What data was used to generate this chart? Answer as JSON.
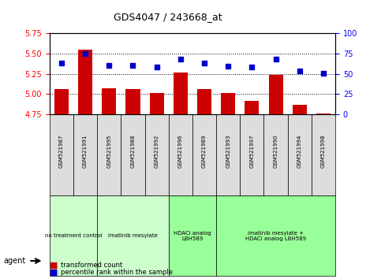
{
  "title": "GDS4047 / 243668_at",
  "samples": [
    "GSM521987",
    "GSM521991",
    "GSM521995",
    "GSM521988",
    "GSM521992",
    "GSM521996",
    "GSM521989",
    "GSM521993",
    "GSM521997",
    "GSM521990",
    "GSM521994",
    "GSM521998"
  ],
  "bar_values": [
    5.06,
    5.55,
    5.07,
    5.06,
    5.01,
    5.27,
    5.06,
    5.01,
    4.92,
    5.24,
    4.87,
    4.76
  ],
  "dot_values": [
    63,
    75,
    61,
    61,
    59,
    68,
    63,
    60,
    59,
    68,
    54,
    51
  ],
  "ymin": 4.75,
  "ymax": 5.75,
  "y2min": 0,
  "y2max": 100,
  "yticks": [
    4.75,
    5.0,
    5.25,
    5.5,
    5.75
  ],
  "y2ticks": [
    0,
    25,
    50,
    75,
    100
  ],
  "bar_color": "#cc0000",
  "dot_color": "#0000cc",
  "bar_bottom": 4.75,
  "groups": [
    {
      "label": "no treatment control",
      "start": 0,
      "end": 2,
      "color": "#ccffcc"
    },
    {
      "label": "imatinib mesylate",
      "start": 2,
      "end": 5,
      "color": "#ccffcc"
    },
    {
      "label": "HDACi analog\nLBH589",
      "start": 5,
      "end": 7,
      "color": "#99ff99"
    },
    {
      "label": "imatinib mesylate +\nHDACi analog LBH589",
      "start": 7,
      "end": 11,
      "color": "#99ff99"
    }
  ],
  "group_spans": [
    {
      "label": "no treatment control",
      "start": 0,
      "end": 1,
      "color": "#ccffcc"
    },
    {
      "label": "imatinib mesylate",
      "start": 2,
      "end": 4,
      "color": "#ccffcc"
    },
    {
      "label": "HDACi analog\nLBH589",
      "start": 5,
      "end": 6,
      "color": "#99ff99"
    },
    {
      "label": "imatinib mesylate +\nHDACi analog LBH589",
      "start": 7,
      "end": 11,
      "color": "#99ff99"
    }
  ],
  "agent_label": "agent",
  "legend_bar_label": "transformed count",
  "legend_dot_label": "percentile rank within the sample",
  "grid_dotted": true,
  "bar_width": 0.6,
  "bg_plot": "#ffffff",
  "bg_figure": "#ffffff"
}
